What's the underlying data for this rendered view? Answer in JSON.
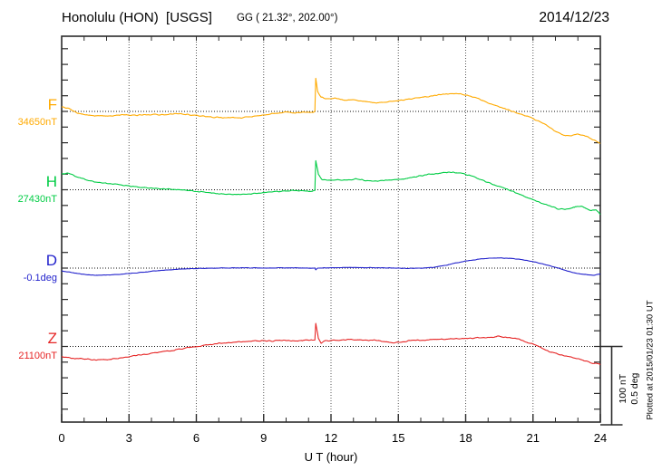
{
  "header": {
    "station_title": "Honolulu (HON)  [USGS]",
    "geographic_coords": "GG ( 21.32°, 202.00°)",
    "date": "2014/12/23"
  },
  "footer": {
    "xaxis_title": "U T (hour)",
    "plotted_at_note": "Plotted at 2015/01/23 01:30 UT"
  },
  "colors": {
    "F": "#FFAA00",
    "H": "#00CC44",
    "D": "#2222CC",
    "Z": "#E62525",
    "frame": "#2b2b2b",
    "grid": "#555555",
    "baseline": "#111111"
  },
  "chart_data": {
    "type": "line",
    "title": "Honolulu (HON) [USGS] magnetogram 2014/12/23",
    "xlabel": "U T (hour)",
    "x_range": [
      0,
      24
    ],
    "x_ticks": [
      0,
      3,
      6,
      9,
      12,
      15,
      18,
      21,
      24
    ],
    "x_minor_tick_every_hours": 1,
    "grid": "vertical dotted lines every 3 h; dotted horizontal zero-baseline per channel",
    "legend_position": "channel letter and baseline value at left of each trace",
    "scale_bar": {
      "nT": 100,
      "deg": 0.5,
      "labels": [
        "100 nT",
        "0.5 deg"
      ]
    },
    "points_format": "[hour UT, offset from baseline_value in unit]",
    "event": "sudden impulse spike near 11.3 h UT on F, H, Z (small dip on D)",
    "series": [
      {
        "name": "F",
        "unit": "nT",
        "baseline_label": "34650nT",
        "baseline_value": 34650,
        "color": "#FFAA00",
        "points": [
          [
            0,
            6
          ],
          [
            0.3,
            4
          ],
          [
            0.7,
            -2
          ],
          [
            1.2,
            -5
          ],
          [
            2,
            -6
          ],
          [
            2.8,
            -4
          ],
          [
            3.2,
            -5
          ],
          [
            4,
            -4
          ],
          [
            4.6,
            -4
          ],
          [
            5.2,
            -3
          ],
          [
            6,
            -5
          ],
          [
            6.6,
            -7
          ],
          [
            7.3,
            -8
          ],
          [
            8,
            -8
          ],
          [
            8.7,
            -6
          ],
          [
            9.3,
            -3
          ],
          [
            10,
            -1
          ],
          [
            10.4,
            -2
          ],
          [
            10.8,
            -1
          ],
          [
            11.2,
            -1
          ],
          [
            11.28,
            0
          ],
          [
            11.32,
            42
          ],
          [
            11.4,
            26
          ],
          [
            11.56,
            18
          ],
          [
            11.8,
            16
          ],
          [
            12.2,
            17
          ],
          [
            12.6,
            14
          ],
          [
            13,
            15
          ],
          [
            13.4,
            13
          ],
          [
            14,
            11
          ],
          [
            14.5,
            12
          ],
          [
            15,
            14
          ],
          [
            15.5,
            16
          ],
          [
            16,
            18
          ],
          [
            16.5,
            20
          ],
          [
            17,
            22
          ],
          [
            17.4,
            23
          ],
          [
            17.8,
            22
          ],
          [
            18.2,
            20
          ],
          [
            18.6,
            16
          ],
          [
            19,
            11
          ],
          [
            19.5,
            6
          ],
          [
            20,
            1
          ],
          [
            20.5,
            -4
          ],
          [
            20.9,
            -8
          ],
          [
            21.3,
            -13
          ],
          [
            21.7,
            -19
          ],
          [
            22,
            -25
          ],
          [
            22.3,
            -30
          ],
          [
            22.7,
            -31
          ],
          [
            23,
            -29
          ],
          [
            23.3,
            -31
          ],
          [
            23.6,
            -35
          ],
          [
            24,
            -41
          ]
        ]
      },
      {
        "name": "H",
        "unit": "nT",
        "baseline_label": "27430nT",
        "baseline_value": 27430,
        "color": "#00CC44",
        "points": [
          [
            0,
            20
          ],
          [
            0.3,
            21
          ],
          [
            0.8,
            15
          ],
          [
            1.3,
            11
          ],
          [
            2,
            8
          ],
          [
            2.7,
            6
          ],
          [
            3.3,
            4
          ],
          [
            4,
            2
          ],
          [
            4.7,
            1
          ],
          [
            5.3,
            0
          ],
          [
            6,
            -2
          ],
          [
            6.7,
            -4
          ],
          [
            7.3,
            -6
          ],
          [
            8,
            -6
          ],
          [
            8.7,
            -5
          ],
          [
            9.3,
            -3
          ],
          [
            10,
            -1
          ],
          [
            10.5,
            -1
          ],
          [
            11,
            -2
          ],
          [
            11.28,
            -1
          ],
          [
            11.32,
            37
          ],
          [
            11.44,
            20
          ],
          [
            11.6,
            13
          ],
          [
            11.9,
            12
          ],
          [
            12.3,
            13
          ],
          [
            12.7,
            12
          ],
          [
            13.1,
            14
          ],
          [
            13.5,
            12
          ],
          [
            14,
            11
          ],
          [
            14.5,
            12
          ],
          [
            15,
            13
          ],
          [
            15.5,
            15
          ],
          [
            16,
            18
          ],
          [
            16.5,
            20
          ],
          [
            17,
            22
          ],
          [
            17.4,
            22
          ],
          [
            17.8,
            21
          ],
          [
            18.2,
            18
          ],
          [
            18.6,
            14
          ],
          [
            19,
            9
          ],
          [
            19.5,
            4
          ],
          [
            20,
            -1
          ],
          [
            20.5,
            -7
          ],
          [
            21,
            -13
          ],
          [
            21.4,
            -17
          ],
          [
            21.8,
            -21
          ],
          [
            22.2,
            -25
          ],
          [
            22.6,
            -24
          ],
          [
            23,
            -21
          ],
          [
            23.3,
            -22
          ],
          [
            23.6,
            -27
          ],
          [
            23.8,
            -25
          ],
          [
            24,
            -31
          ]
        ]
      },
      {
        "name": "D",
        "unit": "deg",
        "baseline_label": "-0.1deg",
        "baseline_value": -0.1,
        "color": "#2222CC",
        "points": [
          [
            0,
            -0.018
          ],
          [
            0.5,
            -0.03
          ],
          [
            1,
            -0.04
          ],
          [
            1.5,
            -0.046
          ],
          [
            2,
            -0.045
          ],
          [
            2.5,
            -0.04
          ],
          [
            3,
            -0.034
          ],
          [
            3.5,
            -0.028
          ],
          [
            4,
            -0.02
          ],
          [
            4.5,
            -0.014
          ],
          [
            5,
            -0.009
          ],
          [
            5.5,
            -0.005
          ],
          [
            6,
            -0.002
          ],
          [
            7,
            0
          ],
          [
            8,
            0.002
          ],
          [
            9,
            0
          ],
          [
            10,
            0.002
          ],
          [
            11,
            0
          ],
          [
            11.28,
            0
          ],
          [
            11.32,
            -0.012
          ],
          [
            11.4,
            0
          ],
          [
            12,
            0.002
          ],
          [
            13,
            0.004
          ],
          [
            14,
            0.002
          ],
          [
            15,
            0
          ],
          [
            15.5,
            -0.002
          ],
          [
            16,
            0
          ],
          [
            16.5,
            0.004
          ],
          [
            17,
            0.015
          ],
          [
            17.5,
            0.03
          ],
          [
            18,
            0.045
          ],
          [
            18.5,
            0.055
          ],
          [
            19,
            0.063
          ],
          [
            19.5,
            0.065
          ],
          [
            20,
            0.062
          ],
          [
            20.5,
            0.054
          ],
          [
            21,
            0.042
          ],
          [
            21.5,
            0.025
          ],
          [
            22,
            0.005
          ],
          [
            22.3,
            -0.008
          ],
          [
            22.7,
            -0.025
          ],
          [
            23,
            -0.035
          ],
          [
            23.4,
            -0.042
          ],
          [
            23.7,
            -0.045
          ],
          [
            24,
            -0.038
          ]
        ]
      },
      {
        "name": "Z",
        "unit": "nT",
        "baseline_label": "21100nT",
        "baseline_value": 21100,
        "color": "#E62525",
        "points": [
          [
            0,
            -13
          ],
          [
            0.5,
            -15
          ],
          [
            1,
            -16
          ],
          [
            1.5,
            -17
          ],
          [
            2,
            -17
          ],
          [
            2.5,
            -15
          ],
          [
            3,
            -13
          ],
          [
            3.5,
            -11
          ],
          [
            4,
            -9
          ],
          [
            4.5,
            -7
          ],
          [
            5,
            -5
          ],
          [
            5.5,
            -2
          ],
          [
            6,
            0
          ],
          [
            6.5,
            2
          ],
          [
            7,
            4
          ],
          [
            7.5,
            5
          ],
          [
            8,
            6
          ],
          [
            8.5,
            7
          ],
          [
            9,
            7
          ],
          [
            9.5,
            7
          ],
          [
            10,
            8
          ],
          [
            10.5,
            7
          ],
          [
            11,
            8
          ],
          [
            11.28,
            8
          ],
          [
            11.32,
            29
          ],
          [
            11.44,
            10
          ],
          [
            11.56,
            4
          ],
          [
            11.7,
            7
          ],
          [
            12,
            8
          ],
          [
            12.5,
            8
          ],
          [
            13,
            9
          ],
          [
            13.5,
            8
          ],
          [
            14,
            8
          ],
          [
            14.4,
            6
          ],
          [
            14.8,
            5
          ],
          [
            15.2,
            6
          ],
          [
            15.6,
            8
          ],
          [
            16,
            8
          ],
          [
            16.5,
            9
          ],
          [
            17,
            9
          ],
          [
            17.5,
            10
          ],
          [
            18,
            10
          ],
          [
            18.5,
            11
          ],
          [
            19,
            11
          ],
          [
            19.4,
            13
          ],
          [
            19.7,
            12
          ],
          [
            20,
            11
          ],
          [
            20.4,
            9
          ],
          [
            20.8,
            5
          ],
          [
            21.1,
            2
          ],
          [
            21.4,
            -2
          ],
          [
            21.7,
            -6
          ],
          [
            22,
            -9
          ],
          [
            22.4,
            -12
          ],
          [
            22.8,
            -14
          ],
          [
            23.2,
            -17
          ],
          [
            23.6,
            -21
          ],
          [
            24,
            -23
          ]
        ]
      }
    ]
  }
}
